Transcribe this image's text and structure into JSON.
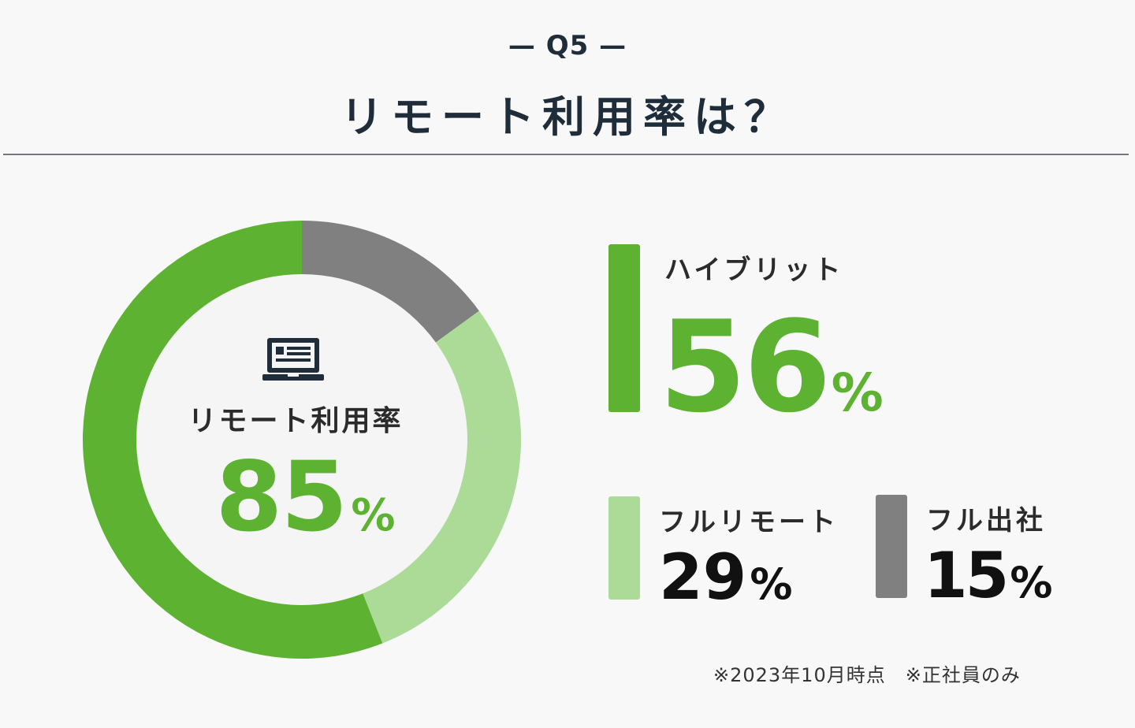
{
  "header": {
    "question": "— Q5 —",
    "title": "リモート利用率は？"
  },
  "center": {
    "icon": "laptop-icon",
    "label": "リモート利用率",
    "value": "85",
    "unit": "%"
  },
  "legend": [
    {
      "label": "ハイブリット",
      "value": "56",
      "unit": "%"
    },
    {
      "label": "フルリモート",
      "value": "29",
      "unit": "%"
    },
    {
      "label": "フル出社",
      "value": "15",
      "unit": "%"
    }
  ],
  "notes": "※2023年10月時点　※正社員のみ",
  "colors": {
    "hybrid": "#5db232",
    "full_remote": "#acdb98",
    "full_office": "#808080",
    "title": "#1f2d3a"
  },
  "chart_data": {
    "type": "pie",
    "categories": [
      "ハイブリット",
      "フルリモート",
      "フル出社"
    ],
    "values": [
      56,
      29,
      15
    ],
    "colors": [
      "#5db232",
      "#acdb98",
      "#808080"
    ],
    "title": "リモート利用率は？"
  }
}
